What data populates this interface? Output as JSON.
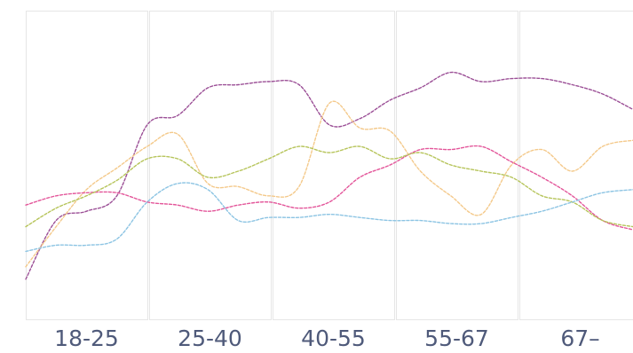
{
  "chart_data": {
    "type": "line",
    "title": "",
    "xlabel": "",
    "ylabel": "",
    "categories": [
      "18-25",
      "25-40",
      "40-55",
      "55-67",
      "67–"
    ],
    "x": [
      0,
      0.5,
      1,
      1.5,
      2,
      2.5,
      3,
      3.5,
      4,
      4.5,
      5,
      5.5,
      6,
      6.5,
      7,
      7.5,
      8,
      8.5,
      9,
      9.5,
      10
    ],
    "ylim": [
      0,
      100
    ],
    "grid": false,
    "legend": "none",
    "series": [
      {
        "color": "#9b4f96",
        "values": [
          13,
          32,
          35,
          40,
          63,
          66,
          75,
          76,
          77,
          76,
          63,
          65,
          71,
          75,
          80,
          77,
          78,
          78,
          76,
          73,
          68
        ]
      },
      {
        "color": "#f4c98a",
        "values": [
          17,
          30,
          42,
          49,
          56,
          60,
          44,
          43,
          40,
          43,
          70,
          62,
          61,
          48,
          40,
          34,
          50,
          55,
          48,
          56,
          58
        ]
      },
      {
        "color": "#e3569a",
        "values": [
          37,
          40,
          41,
          41,
          38,
          37,
          35,
          37,
          38,
          36,
          38,
          46,
          50,
          55,
          55,
          56,
          51,
          46,
          40,
          32,
          29
        ]
      },
      {
        "color": "#b6c45a",
        "values": [
          30,
          36,
          40,
          45,
          52,
          52,
          46,
          48,
          52,
          56,
          54,
          56,
          52,
          54,
          50,
          48,
          46,
          40,
          38,
          32,
          30
        ]
      },
      {
        "color": "#8cc4e3",
        "values": [
          22,
          24,
          24,
          26,
          38,
          44,
          42,
          32,
          33,
          33,
          34,
          33,
          32,
          32,
          31,
          31,
          33,
          35,
          38,
          41,
          42
        ]
      }
    ]
  },
  "colors": {
    "tick_label": "#4f5a7a",
    "panel_border": "#e6e6e6"
  }
}
